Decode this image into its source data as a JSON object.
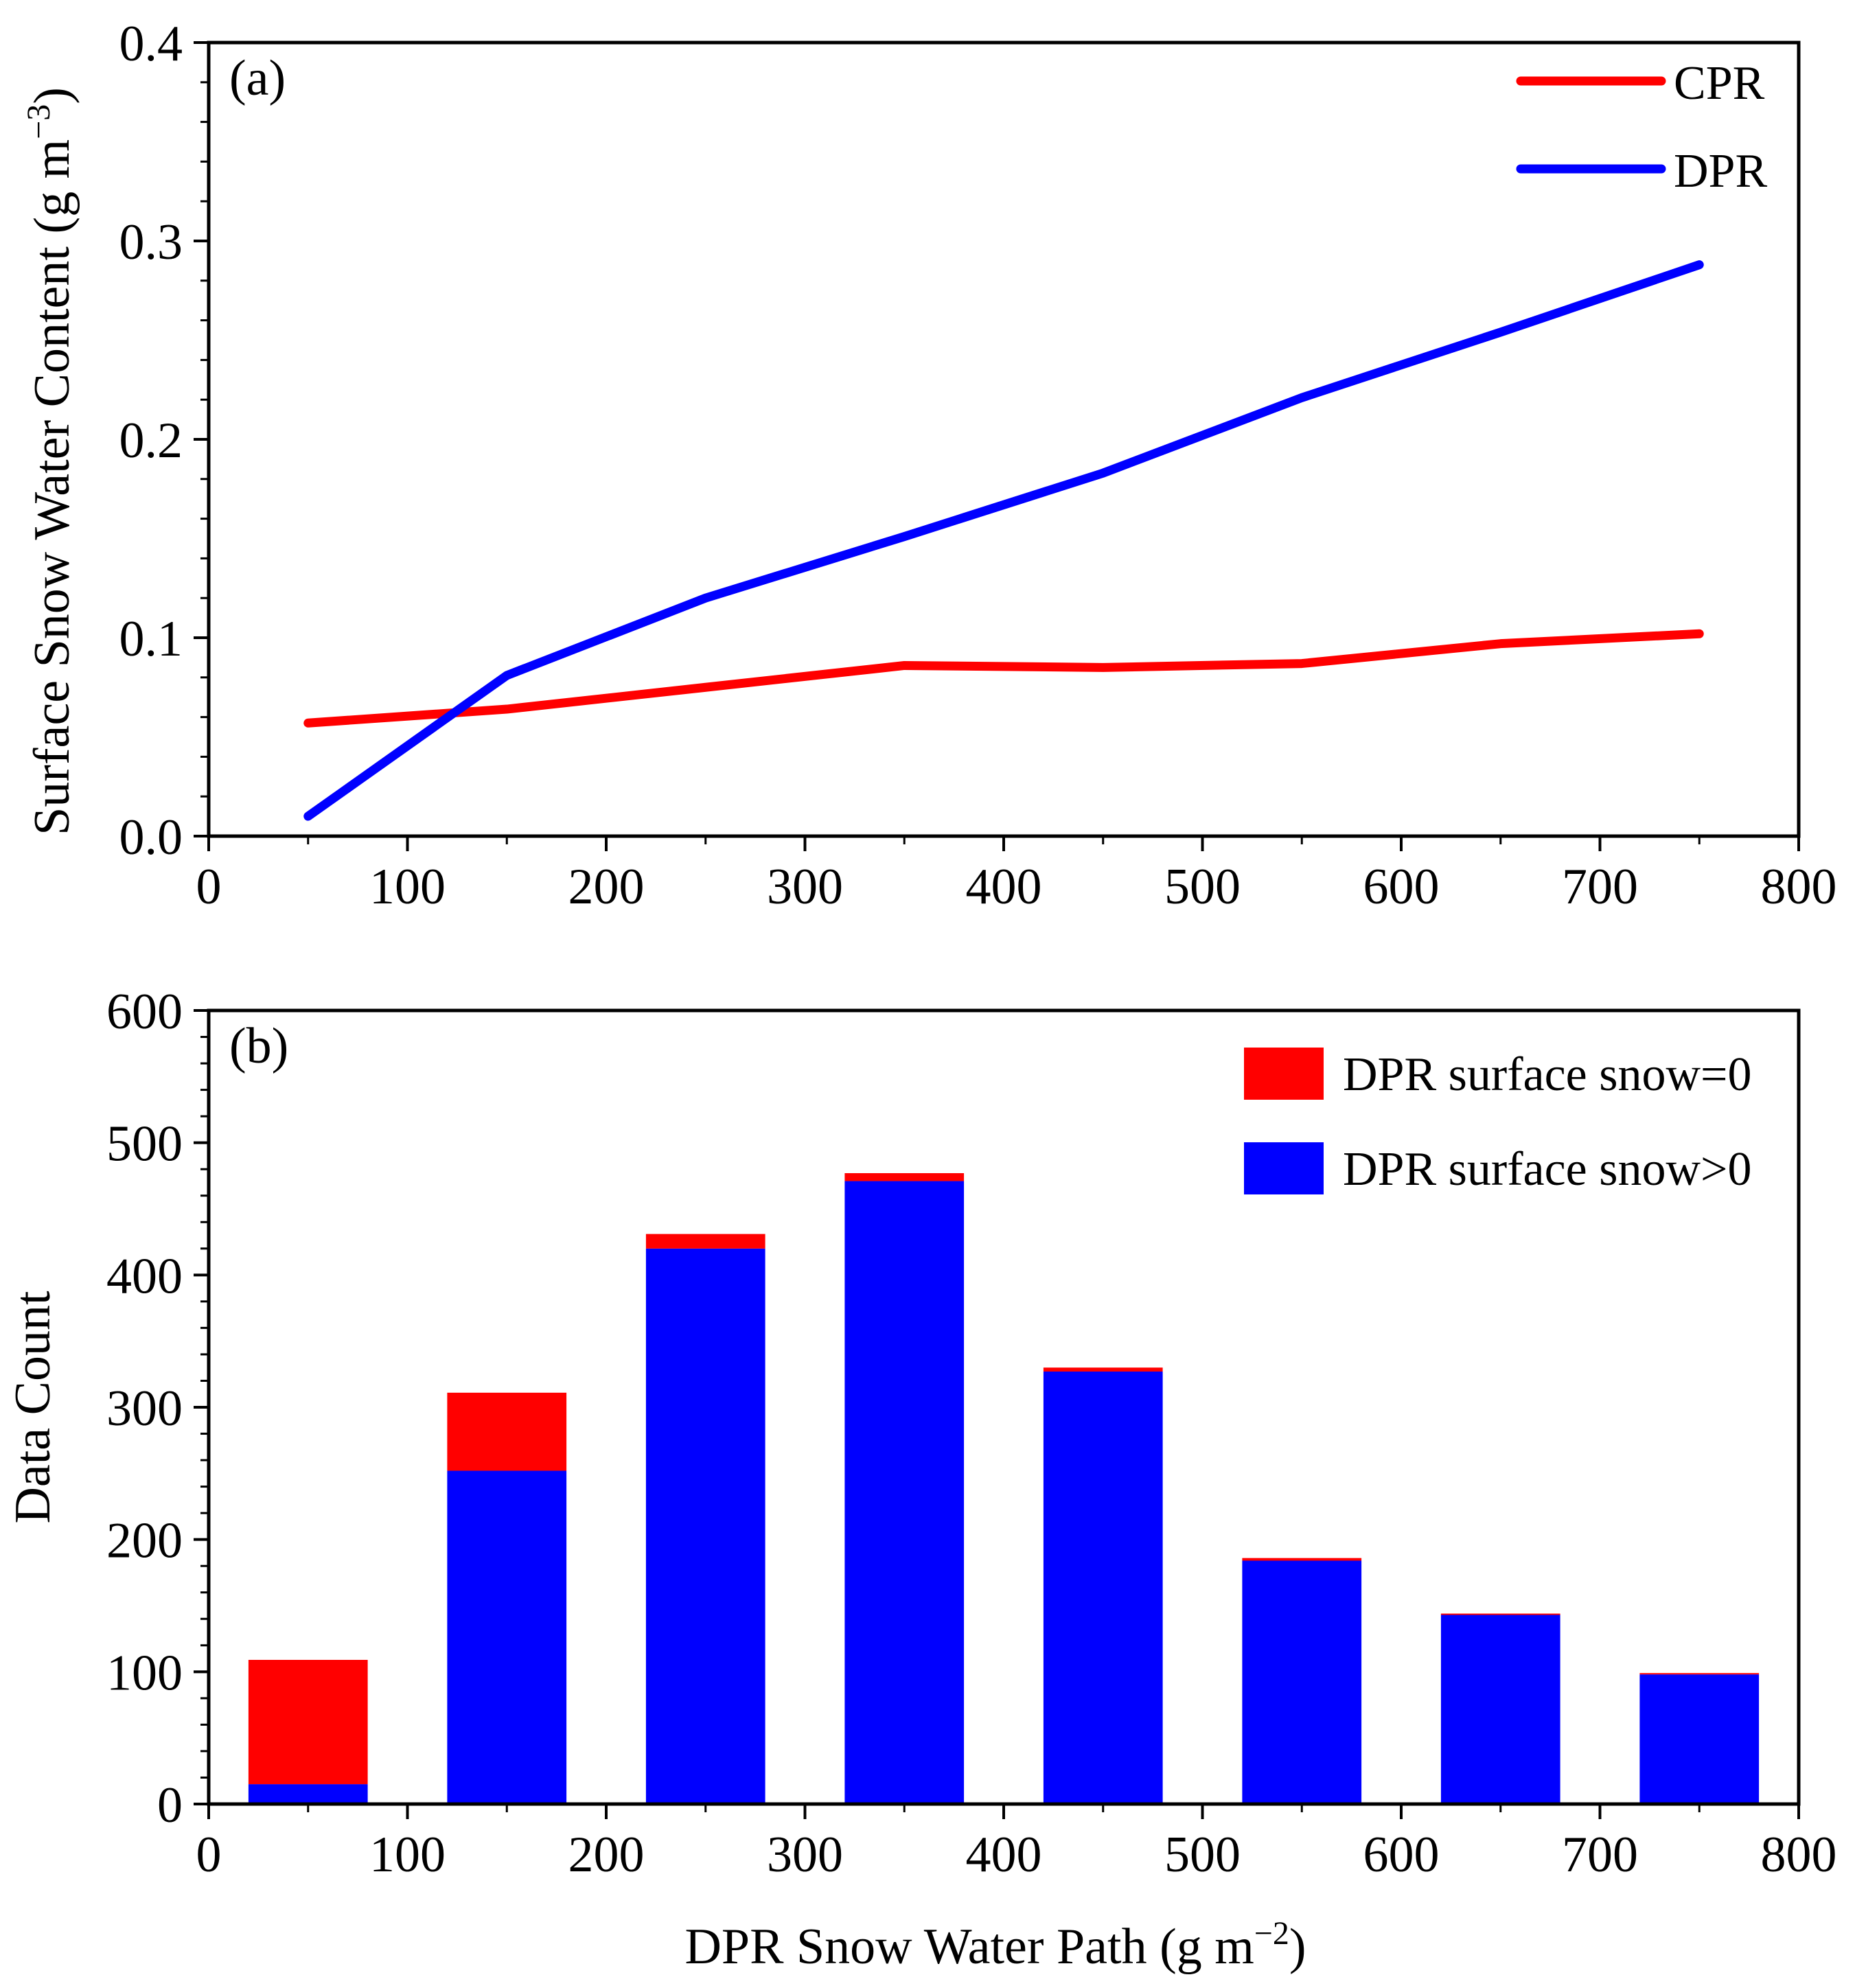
{
  "chart_data": [
    {
      "type": "line",
      "panel_label": "(a)",
      "x": [
        50,
        150,
        250,
        350,
        450,
        550,
        650,
        750
      ],
      "series": [
        {
          "name": "CPR",
          "color": "#ff0000",
          "values": [
            0.057,
            0.064,
            0.075,
            0.086,
            0.085,
            0.087,
            0.097,
            0.102
          ]
        },
        {
          "name": "DPR",
          "color": "#0000ff",
          "values": [
            0.01,
            0.081,
            0.12,
            0.151,
            0.183,
            0.221,
            0.254,
            0.288
          ]
        }
      ],
      "xlim": [
        0,
        800
      ],
      "ylim": [
        0,
        0.4
      ],
      "x_ticks": [
        "0",
        "100",
        "200",
        "300",
        "400",
        "500",
        "600",
        "700",
        "800"
      ],
      "y_ticks": [
        "0.0",
        "0.1",
        "0.2",
        "0.3",
        "0.4"
      ],
      "ylabel": "Surface Snow Water Content (g m",
      "ylabel_sup": "−3",
      "ylabel_end": ")",
      "legend_position": "top-right"
    },
    {
      "type": "bar",
      "stacked": true,
      "panel_label": "(b)",
      "x": [
        50,
        150,
        250,
        350,
        450,
        550,
        650,
        750
      ],
      "series": [
        {
          "name": "DPR surface snow>0",
          "color": "#0000ff",
          "values": [
            15,
            252,
            420,
            471,
            327,
            184,
            143,
            98
          ]
        },
        {
          "name": "DPR surface snow=0",
          "color": "#ff0000",
          "values": [
            94,
            59,
            11,
            6,
            3,
            2,
            1,
            1
          ]
        }
      ],
      "bar_width_units": 60,
      "xlim": [
        0,
        800
      ],
      "ylim": [
        0,
        600
      ],
      "x_ticks": [
        "0",
        "100",
        "200",
        "300",
        "400",
        "500",
        "600",
        "700",
        "800"
      ],
      "y_ticks": [
        "0",
        "100",
        "200",
        "300",
        "400",
        "500",
        "600"
      ],
      "ylabel": "Data Count",
      "xlabel": "DPR Snow Water Path (g m",
      "xlabel_sup": "−2",
      "xlabel_end": ")",
      "legend_order": [
        "DPR surface snow=0",
        "DPR surface snow>0"
      ],
      "legend_position": "top-right"
    }
  ]
}
